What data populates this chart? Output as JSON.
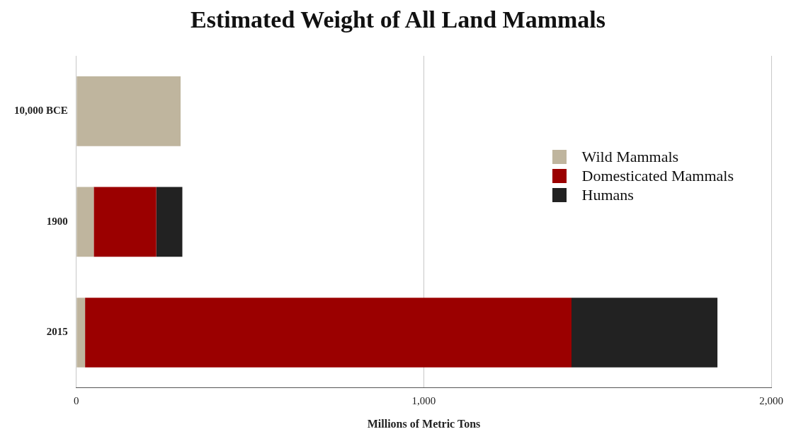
{
  "chart_data": {
    "type": "bar",
    "title": "Estimated Weight of All Land Mammals",
    "xlabel": "Millions of Metric Tons",
    "orientation": "horizontal",
    "stacked": true,
    "categories": [
      "10,000 BCE",
      "1900",
      "2015"
    ],
    "series": [
      {
        "name": "Wild Mammals",
        "color": "#bfb59e",
        "values": [
          300,
          50,
          25
        ]
      },
      {
        "name": "Domesticated Mammals",
        "color": "#9b0000",
        "values": [
          0,
          180,
          1400
        ]
      },
      {
        "name": "Humans",
        "color": "#222222",
        "values": [
          0,
          75,
          420
        ]
      }
    ],
    "xlim": [
      0,
      2000
    ],
    "xticks": [
      {
        "value": 0,
        "label": "0"
      },
      {
        "value": 1000,
        "label": "1,000"
      },
      {
        "value": 2000,
        "label": "2,000"
      }
    ],
    "grid": "x",
    "legend": "right"
  }
}
